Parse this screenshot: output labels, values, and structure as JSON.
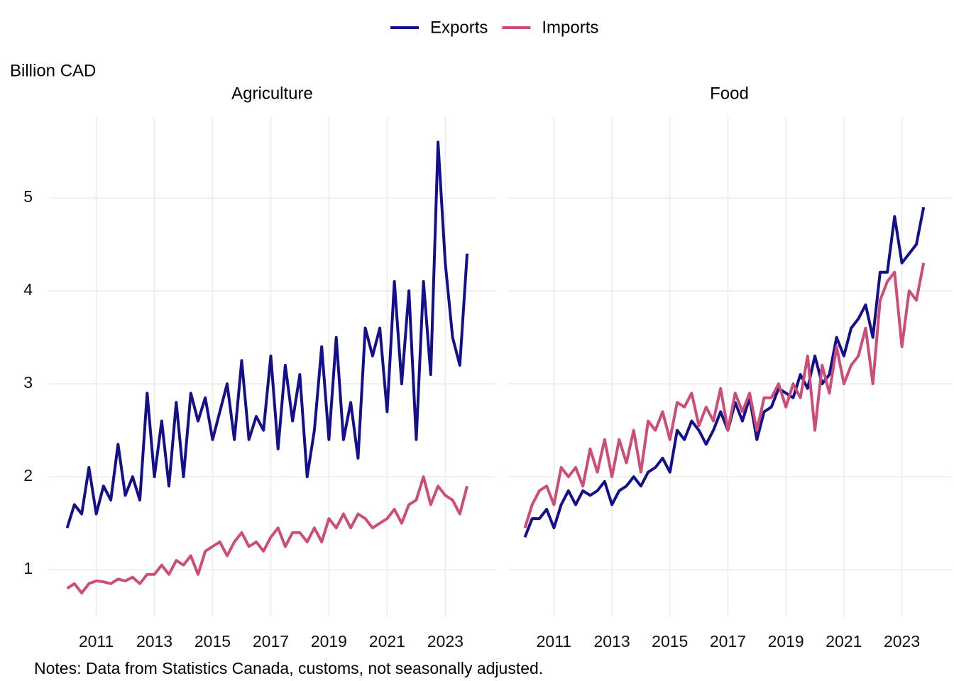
{
  "chart_data": [
    {
      "type": "line",
      "title": "Agriculture",
      "y_label": "Billion CAD",
      "note": "Notes: Data from Statistics Canada, customs, not seasonally adjusted.",
      "x": [
        2010,
        2010.25,
        2010.5,
        2010.75,
        2011,
        2011.25,
        2011.5,
        2011.75,
        2012,
        2012.25,
        2012.5,
        2012.75,
        2013,
        2013.25,
        2013.5,
        2013.75,
        2014,
        2014.25,
        2014.5,
        2014.75,
        2015,
        2015.25,
        2015.5,
        2015.75,
        2016,
        2016.25,
        2016.5,
        2016.75,
        2017,
        2017.25,
        2017.5,
        2017.75,
        2018,
        2018.25,
        2018.5,
        2018.75,
        2019,
        2019.25,
        2019.5,
        2019.75,
        2020,
        2020.25,
        2020.5,
        2020.75,
        2021,
        2021.25,
        2021.5,
        2021.75,
        2022,
        2022.25,
        2022.5,
        2022.75,
        2023,
        2023.25,
        2023.5,
        2023.75
      ],
      "xlim": [
        2009.4,
        2024.7
      ],
      "xticks": [
        2011,
        2013,
        2015,
        2017,
        2019,
        2021,
        2023
      ],
      "ylim": [
        0.49,
        5.87
      ],
      "yticks": [
        1,
        2,
        3,
        4,
        5
      ],
      "grid": true,
      "series": [
        {
          "name": "Exports",
          "color": "#140f8a",
          "values": [
            1.45,
            1.7,
            1.6,
            2.1,
            1.6,
            1.9,
            1.75,
            2.35,
            1.8,
            2.0,
            1.75,
            2.9,
            2.0,
            2.6,
            1.9,
            2.8,
            2.0,
            2.9,
            2.6,
            2.85,
            2.4,
            2.7,
            3.0,
            2.4,
            3.25,
            2.4,
            2.65,
            2.5,
            3.3,
            2.3,
            3.2,
            2.6,
            3.1,
            2.0,
            2.5,
            3.4,
            2.4,
            3.5,
            2.4,
            2.8,
            2.2,
            3.6,
            3.3,
            3.6,
            2.7,
            4.1,
            3.0,
            4.0,
            2.4,
            4.1,
            3.1,
            5.6,
            4.3,
            3.5,
            3.2,
            4.4
          ]
        },
        {
          "name": "Imports",
          "color": "#cc4c7a",
          "values": [
            0.8,
            0.85,
            0.75,
            0.85,
            0.88,
            0.87,
            0.85,
            0.9,
            0.88,
            0.92,
            0.85,
            0.95,
            0.95,
            1.05,
            0.95,
            1.1,
            1.05,
            1.15,
            0.95,
            1.2,
            1.25,
            1.3,
            1.15,
            1.3,
            1.4,
            1.25,
            1.3,
            1.2,
            1.35,
            1.45,
            1.25,
            1.4,
            1.4,
            1.3,
            1.45,
            1.3,
            1.55,
            1.45,
            1.6,
            1.45,
            1.6,
            1.55,
            1.45,
            1.5,
            1.55,
            1.65,
            1.5,
            1.7,
            1.75,
            2.0,
            1.7,
            1.9,
            1.8,
            1.75,
            1.6,
            1.9
          ]
        }
      ]
    },
    {
      "type": "line",
      "title": "Food",
      "x": [
        2010,
        2010.25,
        2010.5,
        2010.75,
        2011,
        2011.25,
        2011.5,
        2011.75,
        2012,
        2012.25,
        2012.5,
        2012.75,
        2013,
        2013.25,
        2013.5,
        2013.75,
        2014,
        2014.25,
        2014.5,
        2014.75,
        2015,
        2015.25,
        2015.5,
        2015.75,
        2016,
        2016.25,
        2016.5,
        2016.75,
        2017,
        2017.25,
        2017.5,
        2017.75,
        2018,
        2018.25,
        2018.5,
        2018.75,
        2019,
        2019.25,
        2019.5,
        2019.75,
        2020,
        2020.25,
        2020.5,
        2020.75,
        2021,
        2021.25,
        2021.5,
        2021.75,
        2022,
        2022.25,
        2022.5,
        2022.75,
        2023,
        2023.25,
        2023.5,
        2023.75
      ],
      "xlim": [
        2009.4,
        2024.7
      ],
      "xticks": [
        2011,
        2013,
        2015,
        2017,
        2019,
        2021,
        2023
      ],
      "ylim": [
        0.49,
        5.87
      ],
      "yticks": [
        1,
        2,
        3,
        4,
        5
      ],
      "grid": true,
      "series": [
        {
          "name": "Exports",
          "color": "#140f8a",
          "values": [
            1.35,
            1.55,
            1.55,
            1.65,
            1.45,
            1.7,
            1.85,
            1.7,
            1.85,
            1.8,
            1.85,
            1.95,
            1.7,
            1.85,
            1.9,
            2.0,
            1.9,
            2.05,
            2.1,
            2.2,
            2.05,
            2.5,
            2.4,
            2.6,
            2.5,
            2.35,
            2.5,
            2.7,
            2.5,
            2.8,
            2.6,
            2.85,
            2.4,
            2.7,
            2.75,
            2.95,
            2.9,
            2.85,
            3.1,
            2.95,
            3.3,
            3.0,
            3.1,
            3.5,
            3.3,
            3.6,
            3.7,
            3.85,
            3.5,
            4.2,
            4.2,
            4.8,
            4.3,
            4.4,
            4.5,
            4.9
          ]
        },
        {
          "name": "Imports",
          "color": "#cc4c7a",
          "values": [
            1.45,
            1.7,
            1.85,
            1.9,
            1.7,
            2.1,
            2.0,
            2.1,
            1.9,
            2.3,
            2.05,
            2.4,
            2.0,
            2.4,
            2.15,
            2.5,
            2.05,
            2.6,
            2.5,
            2.7,
            2.4,
            2.8,
            2.75,
            2.9,
            2.55,
            2.75,
            2.6,
            2.95,
            2.5,
            2.9,
            2.7,
            2.9,
            2.5,
            2.85,
            2.85,
            3.0,
            2.75,
            3.0,
            2.85,
            3.3,
            2.5,
            3.2,
            2.9,
            3.4,
            3.0,
            3.2,
            3.3,
            3.6,
            3.0,
            3.9,
            4.1,
            4.2,
            3.4,
            4.0,
            3.9,
            4.3
          ]
        }
      ]
    }
  ]
}
